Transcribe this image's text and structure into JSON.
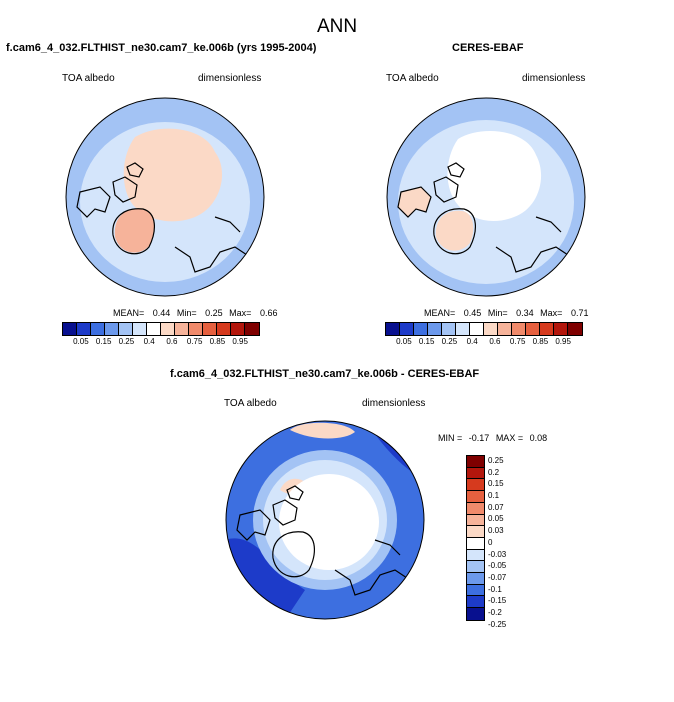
{
  "title": "ANN",
  "panels": {
    "model": {
      "title": "f.cam6_4_032.FLTHIST_ne30.cam7_ke.006b (yrs 1995-2004)",
      "left_label": "TOA albedo",
      "right_label": "dimensionless",
      "stats": {
        "mean_label": "MEAN=",
        "mean": "0.44",
        "min_label": "Min=",
        "min": "0.25",
        "max_label": "Max=",
        "max": "0.66"
      }
    },
    "obs": {
      "title": "CERES-EBAF",
      "left_label": "TOA albedo",
      "right_label": "dimensionless",
      "stats": {
        "mean_label": "MEAN=",
        "mean": "0.45",
        "min_label": "Min=",
        "min": "0.34",
        "max_label": "Max=",
        "max": "0.71"
      }
    },
    "diff": {
      "title": "f.cam6_4_032.FLTHIST_ne30.cam7_ke.006b - CERES-EBAF",
      "left_label": "TOA albedo",
      "right_label": "dimensionless",
      "stats": {
        "min_label": "MIN =",
        "min": "-0.17",
        "max_label": "MAX =",
        "max": "0.08"
      }
    }
  },
  "colorbar_abs": {
    "colors": [
      "#08108f",
      "#1d3bc9",
      "#3d6fe0",
      "#6c99ec",
      "#a3c3f4",
      "#d4e5fb",
      "#ffffff",
      "#fbd9c6",
      "#f6b39a",
      "#f08a6b",
      "#e6603f",
      "#d63a1e",
      "#b3160c",
      "#7f0000"
    ],
    "tick_labels": [
      "0.05",
      "0.15",
      "0.25",
      "0.4",
      "0.6",
      "0.75",
      "0.85",
      "0.95"
    ]
  },
  "colorbar_diff": {
    "colors": [
      "#7f0000",
      "#b3160c",
      "#d63a1e",
      "#e6603f",
      "#f08a6b",
      "#f6b39a",
      "#fbd9c6",
      "#ffffff",
      "#d4e5fb",
      "#a3c3f4",
      "#6c99ec",
      "#3d6fe0",
      "#1d3bc9",
      "#08108f"
    ],
    "tick_labels": [
      "0.25",
      "0.2",
      "0.15",
      "0.1",
      "0.07",
      "0.05",
      "0.03",
      "0",
      "-0.03",
      "-0.05",
      "-0.07",
      "-0.1",
      "-0.15",
      "-0.2",
      "-0.25"
    ]
  },
  "map_colors": {
    "ocean_light": "#d4e5fb",
    "ocean_mid": "#a3c3f4",
    "arctic": "#fbd9c6",
    "greenland": "#f6b39a",
    "diff_blue": "#3d6fe0",
    "diff_deep": "#1d3bc9"
  }
}
